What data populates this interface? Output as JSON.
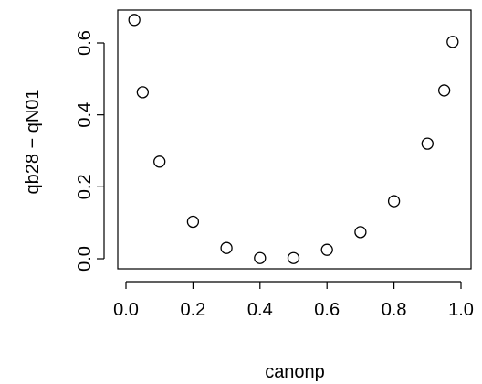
{
  "chart_data": {
    "type": "scatter",
    "title": "",
    "xlabel": "canonp",
    "ylabel": "qb28 − qN01",
    "xlim": [
      0,
      1
    ],
    "ylim": [
      0,
      0.7
    ],
    "grid": false,
    "legend": "none",
    "x_ticks": [
      0.0,
      0.2,
      0.4,
      0.6,
      0.8,
      1.0
    ],
    "x_tick_labels": [
      "0.0",
      "0.2",
      "0.4",
      "0.6",
      "0.8",
      "1.0"
    ],
    "y_ticks": [
      0.0,
      0.2,
      0.4,
      0.6
    ],
    "y_tick_labels": [
      "0.0",
      "0.2",
      "0.4",
      "0.6"
    ],
    "marker": "open-circle",
    "color": "#000000",
    "series": [
      {
        "x": [
          0.025,
          0.05,
          0.1,
          0.2,
          0.3,
          0.4,
          0.5,
          0.6,
          0.7,
          0.8,
          0.9,
          0.95,
          0.975
        ],
        "y": [
          0.664,
          0.463,
          0.27,
          0.103,
          0.03,
          0.002,
          0.002,
          0.025,
          0.074,
          0.16,
          0.32,
          0.468,
          0.603
        ]
      }
    ]
  }
}
